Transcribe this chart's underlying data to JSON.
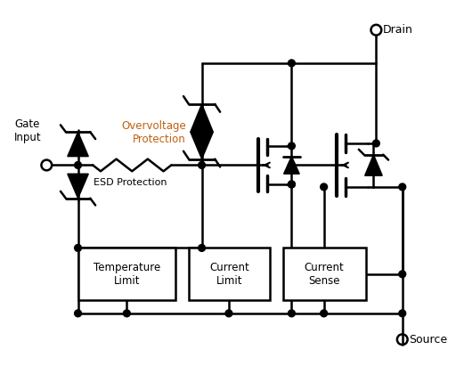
{
  "bg_color": "#ffffff",
  "line_color": "#000000",
  "text_color_orange": "#c06010",
  "text_color_black": "#000000",
  "figsize": [
    5.12,
    4.11
  ],
  "dpi": 100,
  "labels": {
    "gate_input": "Gate\nInput",
    "drain": "Drain",
    "source": "Source",
    "esd": "ESD Protection",
    "overvoltage": "Overvoltage\nProtection",
    "temp_limit": "Temperature\nLimit",
    "current_limit": "Current\nLimit",
    "current_sense": "Current\nSense"
  }
}
